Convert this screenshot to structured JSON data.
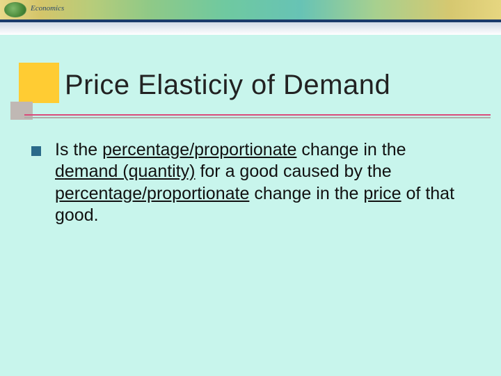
{
  "banner": {
    "label": "Economics",
    "gradient_colors": [
      "#e8d98a",
      "#d4c56a",
      "#b8cc7a",
      "#8fc987",
      "#6fc9a0",
      "#67c3b5",
      "#a7d08f",
      "#d6c870",
      "#e6d680"
    ],
    "rule_color": "#1a3a6a"
  },
  "slide": {
    "background_color": "#c8f5ec",
    "title": "Price Elasticiy of Demand",
    "title_fontsize": 40,
    "title_color": "#222222",
    "accent_yellow": "#ffcc33",
    "accent_gray": "#c0b8b4",
    "rule_red": "#d94a7a",
    "rule_gray": "#b0aca8",
    "bullet_color": "#2a6a8a",
    "body_fontsize": 25,
    "body": {
      "seg1": "Is the ",
      "u1": "percentage/proportionate",
      "seg2": " change in the ",
      "u2": "demand (quantity)",
      "seg3": " for a good caused by the ",
      "u3": "percentage/proportionate",
      "seg4": " change in the ",
      "u4": "price",
      "seg5": " of that good."
    }
  }
}
